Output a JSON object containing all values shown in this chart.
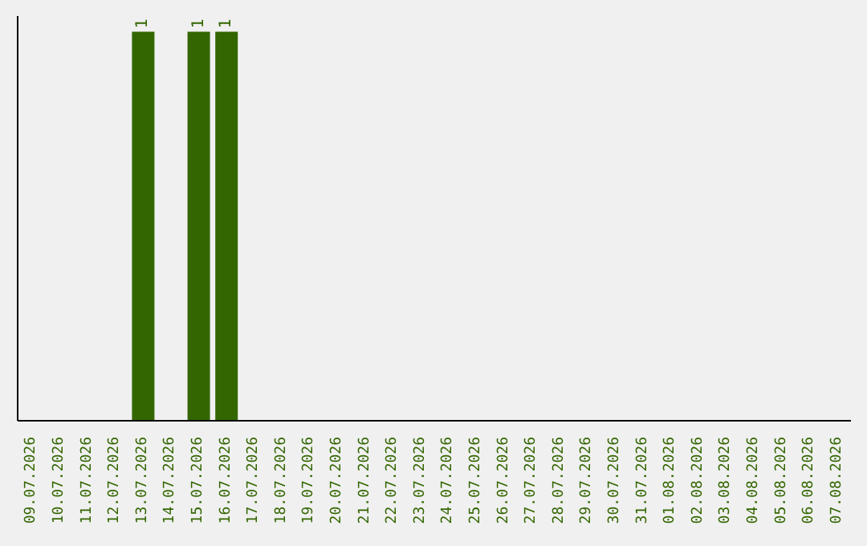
{
  "chart_data": {
    "type": "bar",
    "categories": [
      "09.07.2026",
      "10.07.2026",
      "11.07.2026",
      "12.07.2026",
      "13.07.2026",
      "14.07.2026",
      "15.07.2026",
      "16.07.2026",
      "17.07.2026",
      "18.07.2026",
      "19.07.2026",
      "20.07.2026",
      "21.07.2026",
      "22.07.2026",
      "23.07.2026",
      "24.07.2026",
      "25.07.2026",
      "26.07.2026",
      "27.07.2026",
      "28.07.2026",
      "29.07.2026",
      "30.07.2026",
      "31.07.2026",
      "01.08.2026",
      "02.08.2026",
      "03.08.2026",
      "04.08.2026",
      "05.08.2026",
      "06.08.2026",
      "07.08.2026"
    ],
    "values": [
      0,
      0,
      0,
      0,
      1,
      0,
      1,
      1,
      0,
      0,
      0,
      0,
      0,
      0,
      0,
      0,
      0,
      0,
      0,
      0,
      0,
      0,
      0,
      0,
      0,
      0,
      0,
      0,
      0,
      0
    ],
    "value_labels": [
      null,
      null,
      null,
      null,
      "1",
      null,
      "1",
      "1",
      null,
      null,
      null,
      null,
      null,
      null,
      null,
      null,
      null,
      null,
      null,
      null,
      null,
      null,
      null,
      null,
      null,
      null,
      null,
      null,
      null,
      null
    ],
    "color": "#336600",
    "tick_labels": "x"
  }
}
